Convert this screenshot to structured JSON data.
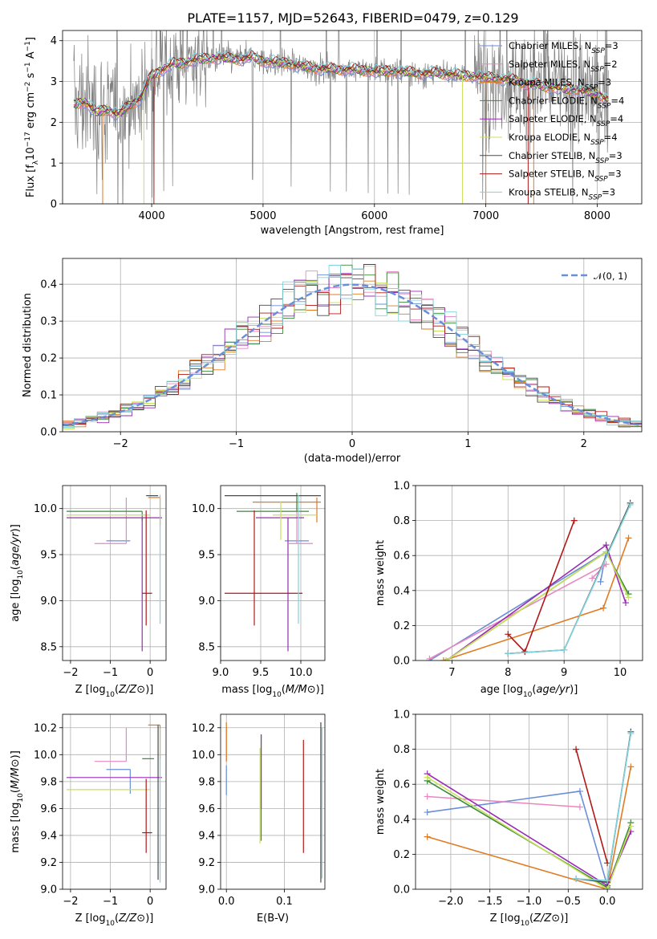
{
  "figure_title": "PLATE=1157, MJD=52643, FIBERID=0479, z=0.129",
  "colors": {
    "chabrier_miles": "#6a8ed8",
    "salpeter_miles": "#e887c0",
    "kroupa_miles": "#e07b22",
    "chabrier_elodie": "#3a8a3a",
    "salpeter_elodie": "#9a2bb5",
    "kroupa_elodie": "#c8e05a",
    "chabrier_stelib": "#4a4a4a",
    "salpeter_stelib": "#b01818",
    "kroupa_stelib": "#7fd3dc",
    "observed": "#808080",
    "normal": "#6a8ed8"
  },
  "chart_data": [
    {
      "panel": "spectrum",
      "type": "line",
      "xlabel": "wavelength [Angstrom, rest frame]",
      "ylabel": "Flux [f_λ 10^-17 erg cm^-2 s^-1 A^-1]",
      "xlim": [
        3200,
        8400
      ],
      "ylim": [
        0,
        4.25
      ],
      "xticks": [
        "4000",
        "5000",
        "6000",
        "7000",
        "8000"
      ],
      "yticks": [
        "0",
        "1",
        "2",
        "3",
        "4"
      ],
      "legend_location": "right",
      "legend": [
        "Chabrier MILES, N_SSP=3",
        "Salpeter MILES, N_SSP=2",
        "Kroupa MILES, N_SSP=3",
        "Chabrier ELODIE, N_SSP=4",
        "Salpeter ELODIE, N_SSP=4",
        "Kroupa ELODIE, N_SSP=4",
        "Chabrier STELIB, N_SSP=3",
        "Salpeter STELIB, N_SSP=3",
        "Kroupa STELIB, N_SSP=3"
      ],
      "model_continuum": {
        "x": [
          3300,
          3400,
          3500,
          3600,
          3700,
          3800,
          3900,
          4000,
          4100,
          4200,
          4300,
          4400,
          4500,
          4600,
          4700,
          4800,
          4900,
          5000,
          5200,
          5400,
          5600,
          5800,
          6000,
          6200,
          6400,
          6600,
          6800,
          7000,
          7200,
          7400,
          7600,
          7800,
          8000,
          8100
        ],
        "y": [
          2.45,
          2.5,
          2.25,
          2.3,
          2.2,
          2.4,
          2.6,
          3.15,
          3.3,
          3.45,
          3.45,
          3.55,
          3.55,
          3.6,
          3.55,
          3.55,
          3.6,
          3.5,
          3.45,
          3.35,
          3.3,
          3.3,
          3.25,
          3.25,
          3.2,
          3.2,
          3.15,
          3.1,
          3.05,
          2.95,
          2.85,
          2.8,
          2.7,
          2.55
        ]
      }
    },
    {
      "panel": "residuals",
      "type": "line",
      "xlabel": "(data-model)/error",
      "ylabel": "Normed distribution",
      "xlim": [
        -2.5,
        2.5
      ],
      "ylim": [
        0,
        0.47
      ],
      "xticks": [
        "−2",
        "−1",
        "0",
        "1",
        "2"
      ],
      "yticks": [
        "0.0",
        "0.1",
        "0.2",
        "0.3",
        "0.4"
      ],
      "legend_location": "upper right",
      "legend": [
        "𝒩(0, 1)"
      ]
    },
    {
      "panel": "age_vs_Z",
      "type": "scatter",
      "xlabel": "Z [log10(Z/Z⊙)]",
      "ylabel": "age  [log10(age/yr)]",
      "xlim": [
        -2.2,
        0.4
      ],
      "ylim": [
        8.35,
        10.25
      ],
      "xticks": [
        "−2",
        "−1",
        "0"
      ],
      "yticks": [
        "8.5",
        "9.0",
        "9.5",
        "10.0"
      ],
      "points": [
        {
          "model": "Chabrier MILES",
          "x": -0.5,
          "xerr": [
            0.6,
            0.0
          ],
          "y": 9.65,
          "yerr": [
            0.0,
            0.0
          ]
        },
        {
          "model": "Salpeter MILES",
          "x": -0.6,
          "xerr": [
            0.8,
            0.0
          ],
          "y": 9.62,
          "yerr": [
            0.0,
            0.5
          ]
        },
        {
          "model": "Kroupa MILES",
          "x": 0.25,
          "xerr": [
            0.3,
            0.0
          ],
          "y": 10.12,
          "yerr": [
            0.3,
            0.0
          ]
        },
        {
          "model": "Chabrier ELODIE",
          "x": -0.2,
          "xerr": [
            1.9,
            0.0
          ],
          "y": 9.97,
          "yerr": [
            0.1,
            0.0
          ]
        },
        {
          "model": "Salpeter ELODIE",
          "x": -0.2,
          "xerr": [
            1.9,
            0.5
          ],
          "y": 9.9,
          "yerr": [
            1.45,
            0.0
          ]
        },
        {
          "model": "Kroupa ELODIE",
          "x": 0.0,
          "xerr": [
            2.1,
            0.0
          ],
          "y": 9.93,
          "yerr": [
            0.0,
            0.0
          ]
        },
        {
          "model": "Chabrier STELIB",
          "x": 0.2,
          "xerr": [
            0.3,
            0.0
          ],
          "y": 10.14,
          "yerr": [
            0.0,
            0.0
          ]
        },
        {
          "model": "Salpeter STELIB",
          "x": -0.1,
          "xerr": [
            0.1,
            0.15
          ],
          "y": 9.08,
          "yerr": [
            0.35,
            0.9
          ]
        },
        {
          "model": "Kroupa STELIB",
          "x": 0.25,
          "xerr": [
            0.0,
            0.0
          ],
          "y": 10.0,
          "yerr": [
            1.25,
            0.15
          ]
        }
      ]
    },
    {
      "panel": "age_vs_mass",
      "type": "scatter",
      "xlabel": "mass [log10(M/M⊙)]",
      "xlim": [
        9.0,
        10.3
      ],
      "ylim": [
        8.35,
        10.25
      ],
      "xticks": [
        "9.0",
        "9.5",
        "10.0"
      ],
      "yticks": [
        "8.5",
        "9.0",
        "9.5",
        "10.0"
      ],
      "points": [
        {
          "model": "Chabrier MILES",
          "x": 9.95,
          "xerr": [
            0.15,
            0.15
          ],
          "y": 9.65,
          "yerr": [
            0.0,
            0.0
          ]
        },
        {
          "model": "Salpeter MILES",
          "x": 9.95,
          "xerr": [
            0.1,
            0.2
          ],
          "y": 9.62,
          "yerr": [
            0.0,
            0.5
          ]
        },
        {
          "model": "Kroupa MILES",
          "x": 10.2,
          "xerr": [
            0.8,
            0.05
          ],
          "y": 10.07,
          "yerr": [
            0.22,
            0.05
          ]
        },
        {
          "model": "Chabrier ELODIE",
          "x": 9.95,
          "xerr": [
            0.75,
            0.15
          ],
          "y": 9.97,
          "yerr": [
            0.0,
            0.2
          ]
        },
        {
          "model": "Salpeter ELODIE",
          "x": 9.84,
          "xerr": [
            0.4,
            0.2
          ],
          "y": 9.9,
          "yerr": [
            1.45,
            0.0
          ]
        },
        {
          "model": "Kroupa ELODIE",
          "x": 9.75,
          "xerr": [
            0.1,
            0.45
          ],
          "y": 9.93,
          "yerr": [
            0.27,
            0.15
          ]
        },
        {
          "model": "Chabrier STELIB",
          "x": 10.0,
          "xerr": [
            0.95,
            0.25
          ],
          "y": 10.14,
          "yerr": [
            0.0,
            0.0
          ]
        },
        {
          "model": "Salpeter STELIB",
          "x": 9.42,
          "xerr": [
            0.37,
            0.6
          ],
          "y": 9.08,
          "yerr": [
            0.35,
            0.9
          ]
        },
        {
          "model": "Kroupa STELIB",
          "x": 9.97,
          "xerr": [
            0.0,
            0.0
          ],
          "y": 10.0,
          "yerr": [
            1.25,
            0.15
          ]
        }
      ]
    },
    {
      "panel": "mass_weight_vs_age",
      "type": "line",
      "xlabel": "age  [log10(age/yr)]",
      "ylabel": "mass weight",
      "xlim": [
        6.35,
        10.4
      ],
      "ylim": [
        0,
        1.0
      ],
      "xticks": [
        "7",
        "8",
        "9",
        "10"
      ],
      "yticks": [
        "0.0",
        "0.2",
        "0.4",
        "0.6",
        "0.8",
        "1.0"
      ],
      "series": [
        {
          "model": "Chabrier MILES",
          "x": [
            6.6,
            9.75,
            9.65
          ],
          "y": [
            0.0,
            0.62,
            0.45
          ]
        },
        {
          "model": "Salpeter MILES",
          "x": [
            6.6,
            9.75,
            9.5
          ],
          "y": [
            0.01,
            0.55,
            0.47
          ]
        },
        {
          "model": "Kroupa MILES",
          "x": [
            6.85,
            9.7,
            10.15
          ],
          "y": [
            0.0,
            0.3,
            0.7
          ]
        },
        {
          "model": "Chabrier ELODIE",
          "x": [
            6.9,
            9.75,
            10.15
          ],
          "y": [
            0.0,
            0.62,
            0.38
          ]
        },
        {
          "model": "Salpeter ELODIE",
          "x": [
            6.9,
            9.75,
            10.1
          ],
          "y": [
            0.0,
            0.66,
            0.33
          ]
        },
        {
          "model": "Kroupa ELODIE",
          "x": [
            6.9,
            9.75,
            10.15
          ],
          "y": [
            0.0,
            0.62,
            0.36
          ]
        },
        {
          "model": "Chabrier STELIB",
          "x": [
            8.0,
            9.0,
            10.18
          ],
          "y": [
            0.04,
            0.06,
            0.9
          ]
        },
        {
          "model": "Salpeter STELIB",
          "x": [
            8.0,
            8.3,
            9.18
          ],
          "y": [
            0.15,
            0.05,
            0.8
          ]
        },
        {
          "model": "Kroupa STELIB",
          "x": [
            8.0,
            9.0,
            10.18
          ],
          "y": [
            0.04,
            0.06,
            0.89
          ]
        }
      ]
    },
    {
      "panel": "mass_vs_Z",
      "type": "scatter",
      "xlabel": "Z [log10(Z/Z⊙)]",
      "ylabel": "mass [log10(M/M⊙)]",
      "xlim": [
        -2.2,
        0.4
      ],
      "ylim": [
        9.0,
        10.3
      ],
      "xticks": [
        "−2",
        "−1",
        "0"
      ],
      "yticks": [
        "9.0",
        "9.2",
        "9.4",
        "9.6",
        "9.8",
        "10.0",
        "10.2"
      ],
      "points": [
        {
          "model": "Chabrier MILES",
          "x": -0.5,
          "xerr": [
            0.6,
            0.0
          ],
          "y": 9.89,
          "yerr": [
            0.18,
            0.0
          ]
        },
        {
          "model": "Salpeter MILES",
          "x": -0.6,
          "xerr": [
            0.8,
            0.0
          ],
          "y": 9.95,
          "yerr": [
            0.0,
            0.25
          ]
        },
        {
          "model": "Kroupa MILES",
          "x": 0.25,
          "xerr": [
            0.3,
            0.0
          ],
          "y": 10.22,
          "yerr": [
            0.25,
            0.0
          ]
        },
        {
          "model": "Chabrier ELODIE",
          "x": -0.2,
          "xerr": [
            0.0,
            0.3
          ],
          "y": 9.97,
          "yerr": [
            0.0,
            0.0
          ]
        },
        {
          "model": "Salpeter ELODIE",
          "x": -0.2,
          "xerr": [
            1.9,
            0.5
          ],
          "y": 9.83,
          "yerr": [
            0.0,
            0.0
          ]
        },
        {
          "model": "Kroupa ELODIE",
          "x": 0.0,
          "xerr": [
            2.1,
            0.0
          ],
          "y": 9.74,
          "yerr": [
            0.0,
            0.0
          ]
        },
        {
          "model": "Chabrier STELIB",
          "x": 0.2,
          "xerr": [
            0.0,
            0.0
          ],
          "y": 9.22,
          "yerr": [
            0.15,
            1.0
          ]
        },
        {
          "model": "Salpeter STELIB",
          "x": -0.1,
          "xerr": [
            0.1,
            0.15
          ],
          "y": 9.42,
          "yerr": [
            0.15,
            0.4
          ]
        },
        {
          "model": "Kroupa STELIB",
          "x": 0.25,
          "xerr": [
            0.0,
            0.0
          ],
          "y": 9.5,
          "yerr": [
            0.45,
            0.7
          ]
        }
      ]
    },
    {
      "panel": "mass_vs_EBV",
      "type": "scatter",
      "xlabel": "E(B-V)",
      "xlim": [
        -0.01,
        0.17
      ],
      "ylim": [
        9.0,
        10.3
      ],
      "xticks": [
        "0.0",
        "0.1"
      ],
      "yticks": [
        "9.0",
        "9.2",
        "9.4",
        "9.6",
        "9.8",
        "10.0",
        "10.2"
      ],
      "points": [
        {
          "model": "Chabrier MILES",
          "x": 0.0,
          "yrange": [
            9.7,
            9.92
          ]
        },
        {
          "model": "Salpeter MILES",
          "x": 0.0,
          "yrange": [
            9.95,
            10.2
          ]
        },
        {
          "model": "Kroupa MILES",
          "x": 0.0,
          "yrange": [
            9.95,
            10.24
          ]
        },
        {
          "model": "Chabrier ELODIE",
          "x": 0.06,
          "yrange": [
            9.36,
            10.15
          ]
        },
        {
          "model": "Salpeter ELODIE",
          "x": 0.06,
          "yrange": [
            9.6,
            10.15
          ]
        },
        {
          "model": "Kroupa ELODIE",
          "x": 0.058,
          "yrange": [
            9.34,
            10.05
          ]
        },
        {
          "model": "Chabrier STELIB",
          "x": 0.163,
          "yrange": [
            9.05,
            10.24
          ]
        },
        {
          "model": "Salpeter STELIB",
          "x": 0.133,
          "yrange": [
            9.27,
            10.11
          ]
        },
        {
          "model": "Kroupa STELIB",
          "x": 0.165,
          "yrange": [
            9.08,
            10.2
          ]
        }
      ]
    },
    {
      "panel": "mass_weight_vs_Z",
      "type": "line",
      "xlabel": "Z [log10(Z/Z⊙)]",
      "ylabel": "mass weight",
      "xlim": [
        -2.45,
        0.45
      ],
      "ylim": [
        0,
        1.0
      ],
      "xticks": [
        "−2.0",
        "−1.5",
        "−1.0",
        "−0.5",
        "0.0"
      ],
      "yticks": [
        "0.0",
        "0.2",
        "0.4",
        "0.6",
        "0.8",
        "1.0"
      ],
      "series": [
        {
          "model": "Chabrier MILES",
          "x": [
            -2.3,
            -0.35,
            0.0
          ],
          "y": [
            0.44,
            0.56,
            0.02
          ]
        },
        {
          "model": "Salpeter MILES",
          "x": [
            -2.3,
            -0.35
          ],
          "y": [
            0.53,
            0.47
          ]
        },
        {
          "model": "Kroupa MILES",
          "x": [
            -2.3,
            0.0,
            0.3
          ],
          "y": [
            0.3,
            0.0,
            0.7
          ]
        },
        {
          "model": "Chabrier ELODIE",
          "x": [
            -2.3,
            0.0,
            0.3
          ],
          "y": [
            0.62,
            0.01,
            0.38
          ]
        },
        {
          "model": "Salpeter ELODIE",
          "x": [
            -2.3,
            0.0,
            0.3
          ],
          "y": [
            0.66,
            0.02,
            0.33
          ]
        },
        {
          "model": "Kroupa ELODIE",
          "x": [
            -2.3,
            0.0,
            0.3
          ],
          "y": [
            0.64,
            0.0,
            0.36
          ]
        },
        {
          "model": "Chabrier STELIB",
          "x": [
            -0.4,
            0.0,
            0.3
          ],
          "y": [
            0.06,
            0.04,
            0.9
          ]
        },
        {
          "model": "Salpeter STELIB",
          "x": [
            -0.4,
            0.0
          ],
          "y": [
            0.8,
            0.15
          ]
        },
        {
          "model": "Kroupa STELIB",
          "x": [
            -0.4,
            0.0,
            0.3
          ],
          "y": [
            0.06,
            0.05,
            0.89
          ]
        }
      ]
    }
  ]
}
